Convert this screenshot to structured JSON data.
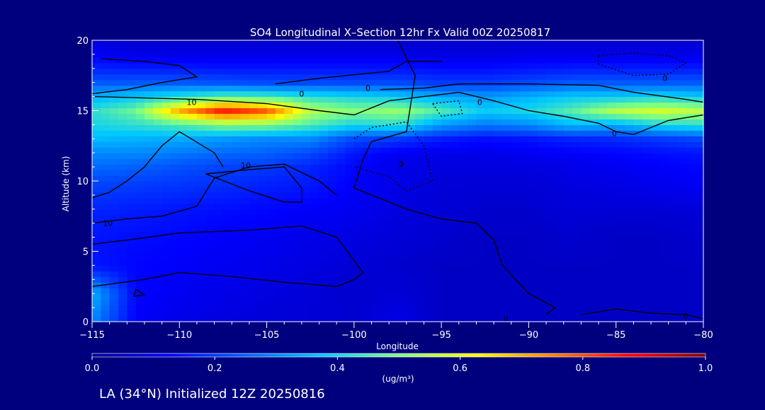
{
  "chart_data": {
    "type": "heatmap",
    "title": "SO4 Longitudinal X–Section 12hr  Fx Valid 00Z 20250817",
    "xlabel": "Longitude",
    "ylabel": "Altitude (km)",
    "xlim": [
      -115,
      -80
    ],
    "ylim": [
      0,
      20
    ],
    "x_ticks": [
      -115,
      -110,
      -105,
      -100,
      -95,
      -90,
      -85,
      -80
    ],
    "x_tick_labels": [
      "−115",
      "−110",
      "−105",
      "−100",
      "−95",
      "−90",
      "−85",
      "−80"
    ],
    "y_ticks": [
      0,
      5,
      10,
      15,
      20
    ],
    "y_tick_labels": [
      "0",
      "5",
      "10",
      "15",
      "20"
    ],
    "grid": false,
    "colorbar": {
      "min": 0.0,
      "max": 1.0,
      "ticks": [
        0.0,
        0.2,
        0.4,
        0.6,
        0.8,
        1.0
      ],
      "tick_labels": [
        "0.0",
        "0.2",
        "0.4",
        "0.6",
        "0.8",
        "1.0"
      ],
      "unit_label": "(ug/m³)",
      "colors": [
        "#000090",
        "#0000ff",
        "#0060ff",
        "#00c8ff",
        "#80ff80",
        "#ffff00",
        "#ff8000",
        "#ff0000",
        "#800000"
      ]
    },
    "field": {
      "x": [
        -115,
        -112.5,
        -110,
        -107.5,
        -105,
        -102.5,
        -100,
        -97.5,
        -95,
        -92.5,
        -90,
        -87.5,
        -85,
        -82.5,
        -80
      ],
      "y": [
        0,
        2,
        4,
        6,
        8,
        10,
        11,
        12,
        13,
        14,
        15,
        16,
        17,
        18,
        19,
        20
      ],
      "values": [
        [
          0.3,
          0.12,
          0.1,
          0.09,
          0.08,
          0.08,
          0.07,
          0.1,
          0.06,
          0.06,
          0.06,
          0.06,
          0.06,
          0.06,
          0.06
        ],
        [
          0.35,
          0.13,
          0.11,
          0.1,
          0.09,
          0.08,
          0.07,
          0.08,
          0.06,
          0.06,
          0.06,
          0.06,
          0.06,
          0.06,
          0.06
        ],
        [
          0.15,
          0.13,
          0.12,
          0.11,
          0.1,
          0.09,
          0.08,
          0.07,
          0.06,
          0.06,
          0.06,
          0.06,
          0.06,
          0.06,
          0.06
        ],
        [
          0.15,
          0.14,
          0.13,
          0.12,
          0.11,
          0.1,
          0.09,
          0.08,
          0.07,
          0.06,
          0.06,
          0.07,
          0.06,
          0.06,
          0.07
        ],
        [
          0.17,
          0.16,
          0.15,
          0.14,
          0.13,
          0.12,
          0.11,
          0.09,
          0.08,
          0.07,
          0.07,
          0.08,
          0.08,
          0.08,
          0.08
        ],
        [
          0.22,
          0.21,
          0.2,
          0.19,
          0.17,
          0.16,
          0.12,
          0.1,
          0.08,
          0.08,
          0.08,
          0.09,
          0.1,
          0.11,
          0.12
        ],
        [
          0.26,
          0.25,
          0.23,
          0.21,
          0.2,
          0.17,
          0.13,
          0.1,
          0.09,
          0.09,
          0.09,
          0.1,
          0.11,
          0.12,
          0.13
        ],
        [
          0.3,
          0.3,
          0.28,
          0.26,
          0.25,
          0.22,
          0.15,
          0.11,
          0.1,
          0.1,
          0.11,
          0.12,
          0.13,
          0.14,
          0.15
        ],
        [
          0.36,
          0.35,
          0.34,
          0.32,
          0.3,
          0.3,
          0.22,
          0.2,
          0.16,
          0.14,
          0.15,
          0.17,
          0.18,
          0.2,
          0.22
        ],
        [
          0.4,
          0.42,
          0.45,
          0.5,
          0.5,
          0.45,
          0.4,
          0.42,
          0.32,
          0.28,
          0.3,
          0.36,
          0.34,
          0.4,
          0.42
        ],
        [
          0.42,
          0.48,
          0.7,
          0.85,
          0.78,
          0.55,
          0.5,
          0.52,
          0.45,
          0.38,
          0.4,
          0.46,
          0.55,
          0.58,
          0.55
        ],
        [
          0.35,
          0.38,
          0.42,
          0.46,
          0.45,
          0.42,
          0.4,
          0.38,
          0.34,
          0.32,
          0.35,
          0.38,
          0.38,
          0.4,
          0.38
        ],
        [
          0.24,
          0.24,
          0.24,
          0.23,
          0.22,
          0.22,
          0.22,
          0.22,
          0.2,
          0.2,
          0.22,
          0.24,
          0.24,
          0.24,
          0.24
        ],
        [
          0.17,
          0.16,
          0.16,
          0.15,
          0.15,
          0.15,
          0.15,
          0.15,
          0.14,
          0.14,
          0.15,
          0.16,
          0.16,
          0.16,
          0.16
        ],
        [
          0.12,
          0.1,
          0.1,
          0.1,
          0.1,
          0.1,
          0.1,
          0.1,
          0.09,
          0.09,
          0.1,
          0.1,
          0.1,
          0.1,
          0.1
        ],
        [
          0.08,
          0.07,
          0.07,
          0.07,
          0.07,
          0.07,
          0.07,
          0.07,
          0.07,
          0.07,
          0.07,
          0.07,
          0.07,
          0.07,
          0.07
        ]
      ]
    },
    "contours": [
      {
        "label": "10",
        "style": "solid",
        "points": [
          [
            -115,
            5.5
          ],
          [
            -113,
            5.8
          ],
          [
            -110,
            6.3
          ],
          [
            -106,
            6.5
          ],
          [
            -103,
            6.8
          ],
          [
            -101,
            6.0
          ],
          [
            -99.5,
            3.5
          ],
          [
            -100,
            3.0
          ],
          [
            -101,
            2.5
          ],
          [
            -104,
            2.8
          ],
          [
            -107,
            3.2
          ],
          [
            -110,
            3.5
          ],
          [
            -112,
            3.0
          ],
          [
            -115,
            2.5
          ]
        ]
      },
      {
        "label": "10",
        "style": "solid",
        "points": [
          [
            -115,
            7.0
          ],
          [
            -113,
            7.3
          ],
          [
            -111,
            7.5
          ],
          [
            -109,
            8.2
          ],
          [
            -108,
            10.2
          ],
          [
            -106,
            11.0
          ],
          [
            -104,
            11.2
          ],
          [
            -102,
            10.0
          ],
          [
            -101,
            9.0
          ]
        ]
      },
      {
        "label": "10",
        "style": "solid",
        "points": [
          [
            -115,
            8.8
          ],
          [
            -114,
            9.2
          ],
          [
            -113,
            10.0
          ],
          [
            -112,
            11.0
          ],
          [
            -111,
            12.5
          ],
          [
            -110,
            13.5
          ],
          [
            -108,
            12.0
          ],
          [
            -107.5,
            11.0
          ]
        ]
      },
      {
        "label": "10",
        "style": "solid",
        "points": [
          [
            -108.5,
            10.5
          ],
          [
            -106,
            10.8
          ],
          [
            -104,
            11.0
          ],
          [
            -103,
            9.5
          ],
          [
            -103,
            8.5
          ],
          [
            -104,
            8.5
          ],
          [
            -106,
            9.3
          ],
          [
            -108.5,
            10.5
          ]
        ]
      },
      {
        "label": "0",
        "style": "solid",
        "points": [
          [
            -114.5,
            18.7
          ],
          [
            -112,
            18.5
          ],
          [
            -110,
            18.2
          ],
          [
            -109,
            17.4
          ],
          [
            -111,
            17.0
          ],
          [
            -113,
            16.5
          ],
          [
            -115,
            16.2
          ]
        ]
      },
      {
        "label": "0",
        "style": "solid",
        "points": [
          [
            -115,
            16.0
          ],
          [
            -112,
            15.9
          ],
          [
            -109,
            15.8
          ],
          [
            -105,
            15.5
          ],
          [
            -102,
            15.0
          ],
          [
            -100,
            14.7
          ],
          [
            -98,
            15.7
          ],
          [
            -96,
            16.0
          ],
          [
            -94,
            16.3
          ],
          [
            -92,
            15.7
          ],
          [
            -90,
            15.0
          ],
          [
            -88,
            14.6
          ],
          [
            -86,
            14.1
          ],
          [
            -85,
            13.5
          ],
          [
            -84,
            13.3
          ],
          [
            -82,
            14.3
          ],
          [
            -80,
            14.7
          ]
        ]
      },
      {
        "label": "0",
        "style": "solid",
        "points": [
          [
            -104.5,
            16.9
          ],
          [
            -102,
            17.3
          ],
          [
            -98,
            17.8
          ],
          [
            -97,
            18.5
          ],
          [
            -95,
            18.5
          ]
        ]
      },
      {
        "label": "0",
        "style": "solid",
        "points": [
          [
            -98.5,
            16.5
          ],
          [
            -96,
            16.6
          ],
          [
            -94,
            16.9
          ],
          [
            -90,
            16.9
          ],
          [
            -86,
            16.8
          ],
          [
            -84,
            16.3
          ],
          [
            -81,
            15.8
          ],
          [
            -80,
            15.6
          ]
        ]
      },
      {
        "label": "0",
        "style": "dashed",
        "points": [
          [
            -86,
            18.9
          ],
          [
            -84,
            19.1
          ],
          [
            -82,
            18.9
          ],
          [
            -81,
            18.4
          ],
          [
            -82,
            17.6
          ],
          [
            -84,
            17.5
          ],
          [
            -86,
            18.3
          ],
          [
            -86,
            18.9
          ]
        ]
      },
      {
        "label": "0",
        "style": "dashed",
        "points": [
          [
            -100,
            13.0
          ],
          [
            -99,
            13.8
          ],
          [
            -97,
            14.2
          ],
          [
            -96,
            12.5
          ],
          [
            -95.5,
            10.0
          ],
          [
            -97,
            9.3
          ],
          [
            -98,
            10.3
          ],
          [
            -100,
            11.0
          ]
        ]
      },
      {
        "label": "0",
        "style": "dashed",
        "points": [
          [
            -95.5,
            15.5
          ],
          [
            -94,
            15.7
          ],
          [
            -93.8,
            14.8
          ],
          [
            -95,
            14.6
          ],
          [
            -95.5,
            15.5
          ]
        ]
      },
      {
        "label": "0",
        "style": "solid",
        "points": [
          [
            -97.5,
            20
          ],
          [
            -96.5,
            17.5
          ],
          [
            -97,
            13.5
          ],
          [
            -99,
            12.8
          ],
          [
            -99.5,
            11.5
          ],
          [
            -100,
            9.5
          ],
          [
            -98,
            8.5
          ],
          [
            -97,
            8.0
          ],
          [
            -95,
            7.3
          ],
          [
            -93,
            7.0
          ],
          [
            -92,
            5.8
          ],
          [
            -91.5,
            4.0
          ],
          [
            -90,
            2.0
          ],
          [
            -88.5,
            1.0
          ],
          [
            -89,
            0.5
          ]
        ]
      },
      {
        "label": "0",
        "style": "solid",
        "points": [
          [
            -80,
            0.2
          ],
          [
            -81,
            0.5
          ],
          [
            -83,
            0.6
          ],
          [
            -85,
            0.9
          ],
          [
            -87,
            0.5
          ]
        ]
      },
      {
        "label": "",
        "style": "solid",
        "points": [
          [
            -112.5,
            2.3
          ],
          [
            -112,
            1.9
          ],
          [
            -112.6,
            1.8
          ],
          [
            -112.5,
            2.3
          ]
        ]
      }
    ],
    "contour_labels": [
      {
        "text": "10",
        "x": -109.3,
        "y": 15.6
      },
      {
        "text": "10",
        "x": -106.2,
        "y": 11.1
      },
      {
        "text": "10",
        "x": -114.1,
        "y": 7.0
      },
      {
        "text": "0",
        "x": -103.0,
        "y": 16.2
      },
      {
        "text": "0",
        "x": -99.2,
        "y": 16.6
      },
      {
        "text": "0",
        "x": -92.8,
        "y": 15.6
      },
      {
        "text": "0",
        "x": -82.2,
        "y": 17.3
      },
      {
        "text": "0",
        "x": -85.1,
        "y": 13.4
      },
      {
        "text": "0",
        "x": -97.3,
        "y": 11.2
      },
      {
        "text": "0",
        "x": -91.3,
        "y": 0.2
      },
      {
        "text": "0",
        "x": -81.0,
        "y": 0.4
      }
    ]
  },
  "footer_text": "LA (34°N) Initialized 12Z 20250816"
}
